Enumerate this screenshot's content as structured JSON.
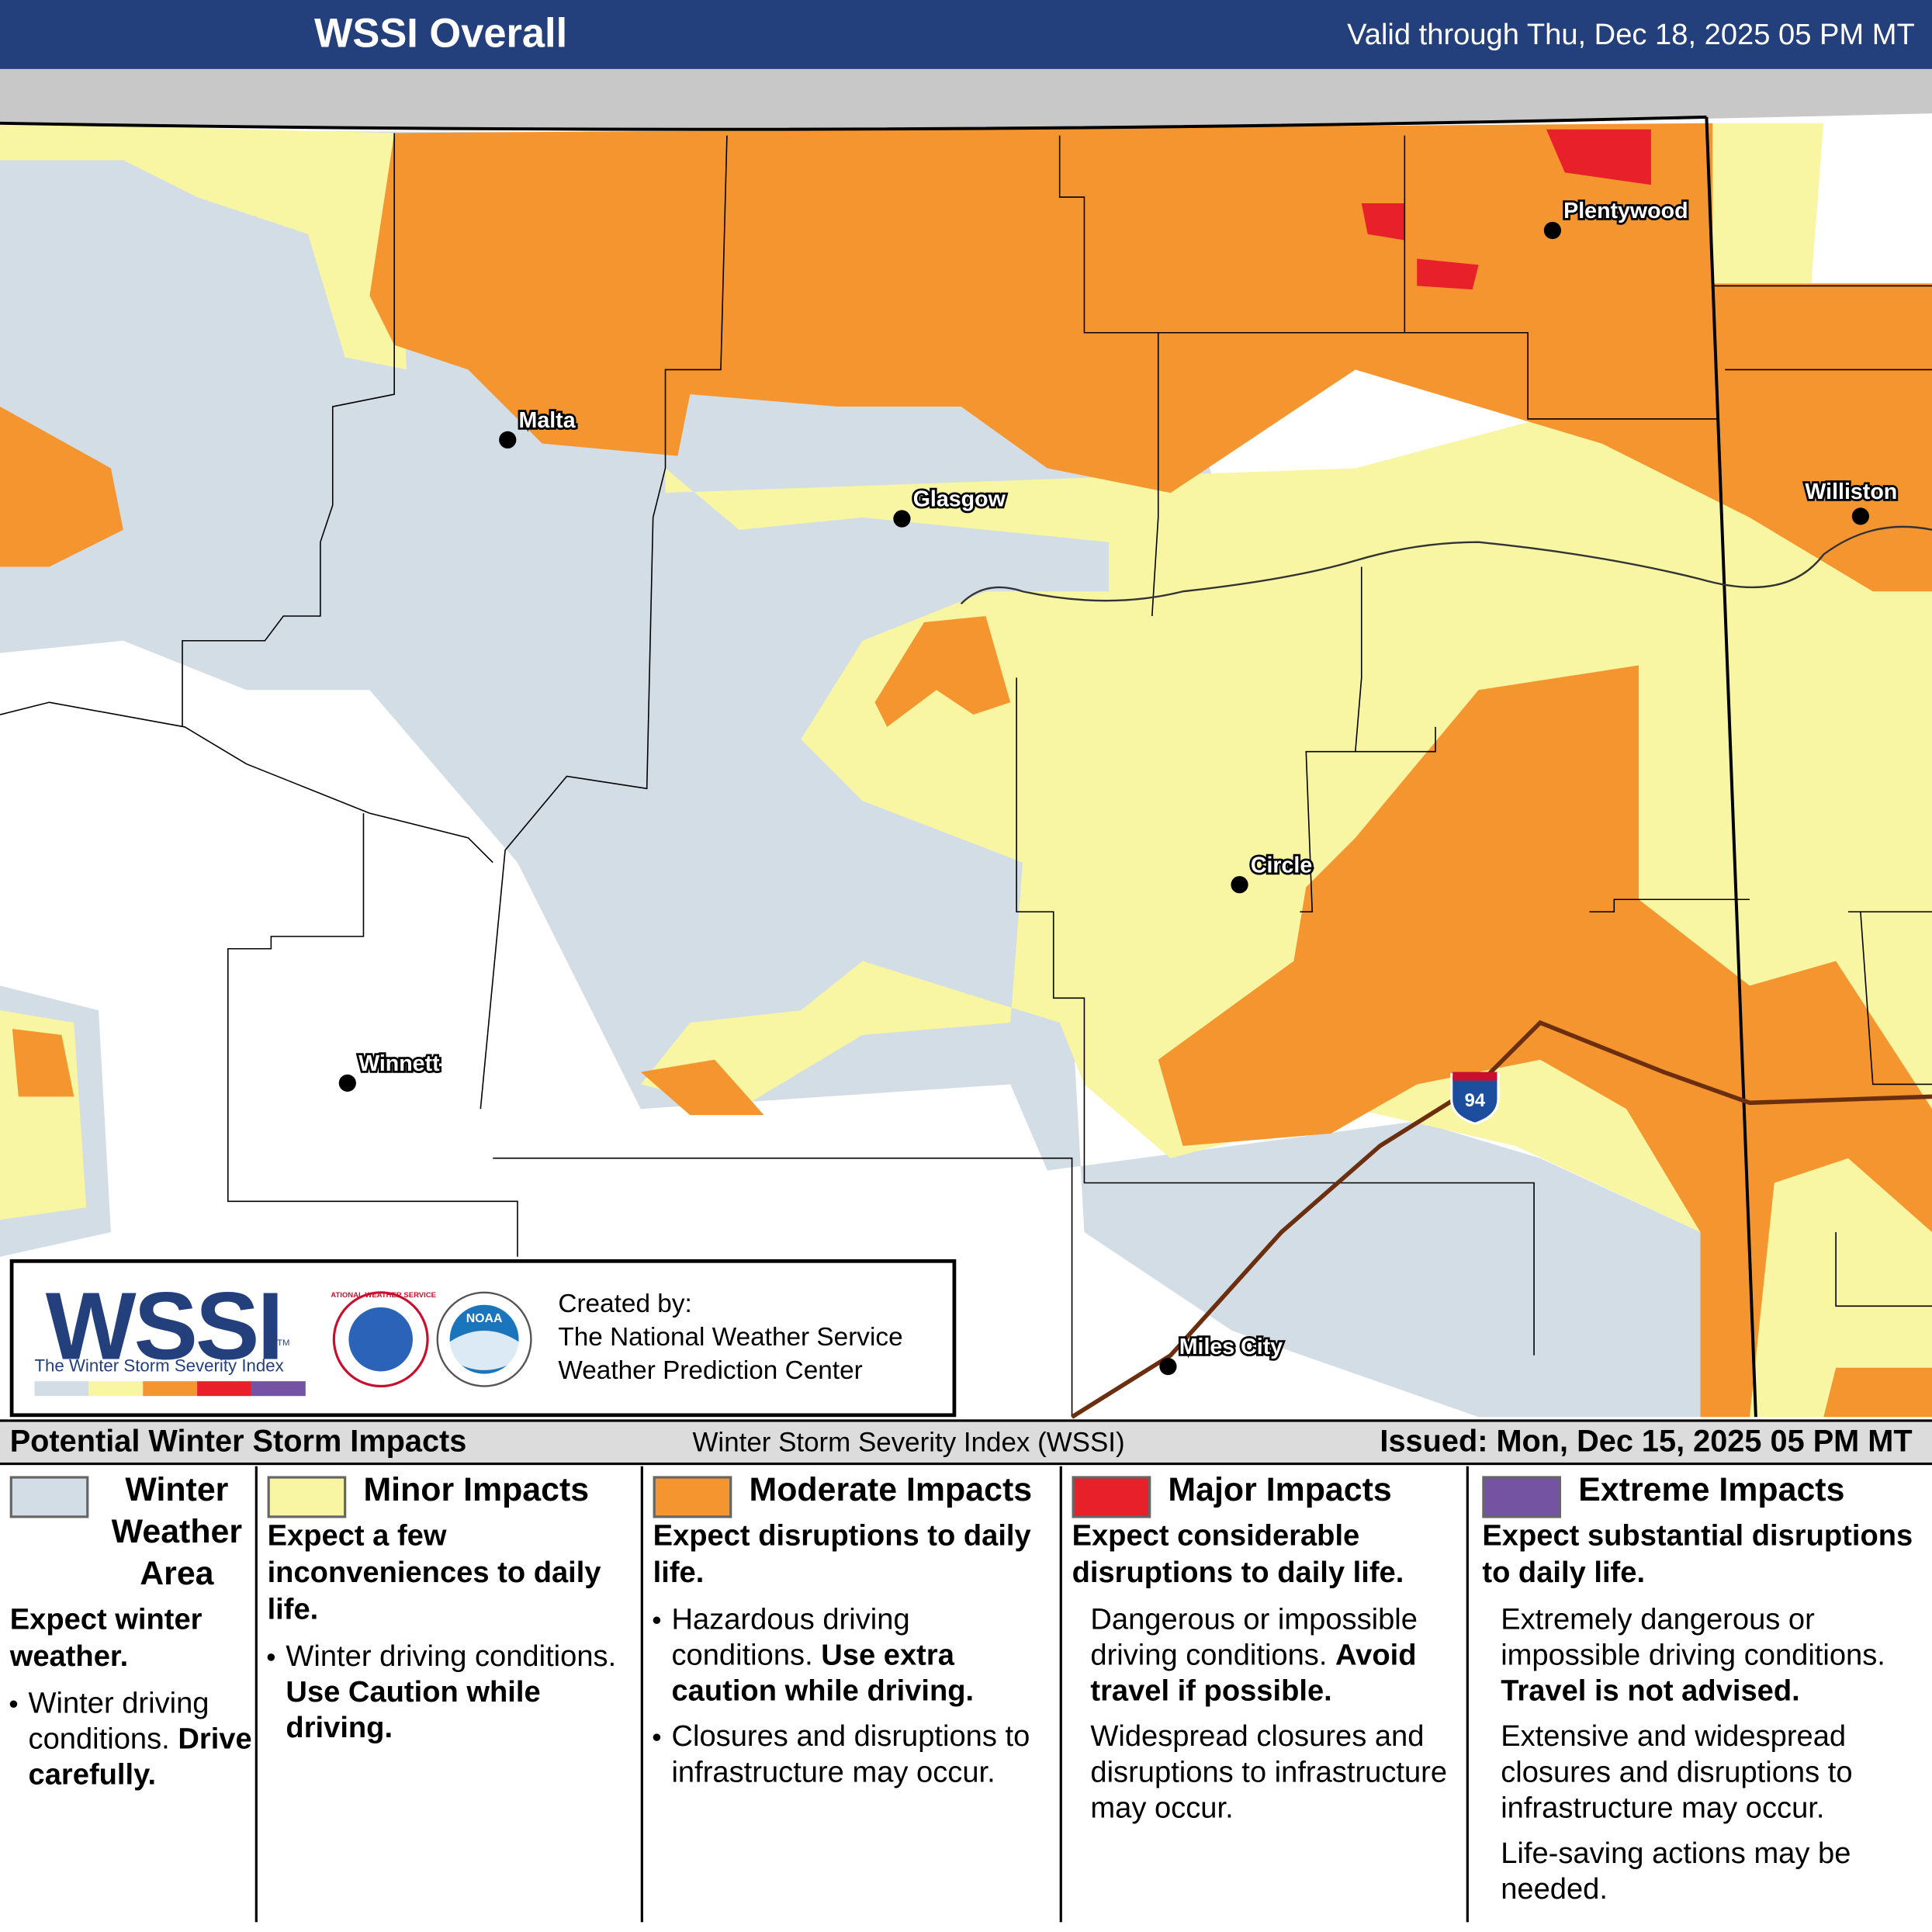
{
  "header": {
    "title": "WSSI Overall",
    "valid": "Valid through Thu, Dec 18, 2025 05 PM MT"
  },
  "map": {
    "cities": [
      "Malta",
      "Glasgow",
      "Plentywood",
      "Williston",
      "Circle",
      "Winnett",
      "Miles City"
    ],
    "interstate": "94"
  },
  "logo": {
    "wordmark": "WSSI",
    "tm": "TM",
    "tagline": "The Winter Storm Severity Index",
    "nws": "NATIONAL WEATHER SERVICE",
    "noaa": "NOAA",
    "credit": [
      "Created by:",
      "The National Weather Service",
      "Weather Prediction Center"
    ]
  },
  "footer_bar": {
    "left": "Potential Winter Storm Impacts",
    "center": "Winter Storm Severity Index (WSSI)",
    "right": "Issued: Mon, Dec 15, 2025 05 PM MT"
  },
  "legend": [
    {
      "name": "Winter Weather Area",
      "color": "#d3dde6",
      "headline": "Expect winter weather.",
      "bulleted": true,
      "items": [
        {
          "text": "Winter driving conditions.",
          "bold": "Drive carefully."
        }
      ]
    },
    {
      "name": "Minor Impacts",
      "color": "#f8f5a3",
      "headline": "Expect a few inconveniences to daily life.",
      "bulleted": true,
      "items": [
        {
          "text": "Winter driving conditions.",
          "bold": "Use Caution while driving."
        }
      ]
    },
    {
      "name": "Moderate Impacts",
      "color": "#f4952f",
      "headline": "Expect disruptions to daily life.",
      "bulleted": true,
      "items": [
        {
          "text": "Hazardous driving conditions.",
          "bold": "Use extra caution while driving."
        },
        {
          "text": "Closures and disruptions to infrastructure may occur."
        }
      ]
    },
    {
      "name": "Major Impacts",
      "color": "#e8202a",
      "headline": "Expect considerable disruptions to daily life.",
      "bulleted": false,
      "items": [
        {
          "text": "Dangerous or impossible driving conditions.",
          "bold": "Avoid travel if possible."
        },
        {
          "text": "Widespread closures and disruptions to infrastructure may occur."
        }
      ]
    },
    {
      "name": "Extreme Impacts",
      "color": "#7453a2",
      "headline": "Expect substantial disruptions to daily life.",
      "bulleted": false,
      "items": [
        {
          "text": "Extremely dangerous or impossible driving conditions.",
          "bold": "Travel is not advised."
        },
        {
          "text": "Extensive and widespread closures and disruptions to infrastructure may occur."
        },
        {
          "text": "Life-saving actions may be needed."
        }
      ]
    }
  ]
}
